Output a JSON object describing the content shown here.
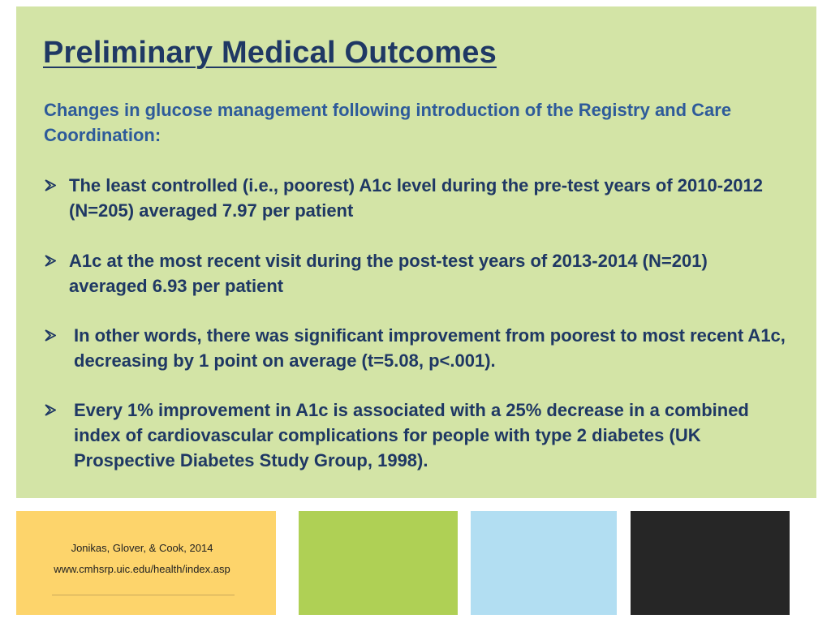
{
  "slide": {
    "title": "Preliminary Medical Outcomes",
    "intro": "Changes in glucose management following introduction of the Registry and Care Coordination:",
    "bullets": [
      {
        "icon": "arrow-bullet-icon",
        "text": "The least controlled (i.e., poorest) A1c level during the pre-test years of 2010-2012 (N=205) averaged 7.97 per patient"
      },
      {
        "icon": "arrow-bullet-icon",
        "text": "A1c at the most recent visit during the post-test years of 2013-2014 (N=201) averaged 6.93 per patient"
      },
      {
        "icon": "arrow-bullet-icon",
        "text": "In other words, there was significant improvement from poorest to most recent A1c, decreasing by 1 point on average (t=5.08, p<.001)."
      },
      {
        "icon": "arrow-bullet-icon",
        "text": "Every 1% improvement in A1c is associated with a 25% decrease in a combined index of cardiovascular complications for people with type 2 diabetes (UK Prospective Diabetes Study Group, 1998)."
      }
    ]
  },
  "footer": {
    "citation_line1": "Jonikas, Glover, & Cook, 2014",
    "citation_line2": "www.cmhsrp.uic.edu/health/index.asp"
  },
  "colors": {
    "panel_background": "#d3e4a6",
    "title_color": "#1f3864",
    "intro_color": "#2e5b9a",
    "block_yellow": "#fdd46b",
    "block_green": "#afd055",
    "block_blue": "#b2def2",
    "block_black": "#262626"
  }
}
